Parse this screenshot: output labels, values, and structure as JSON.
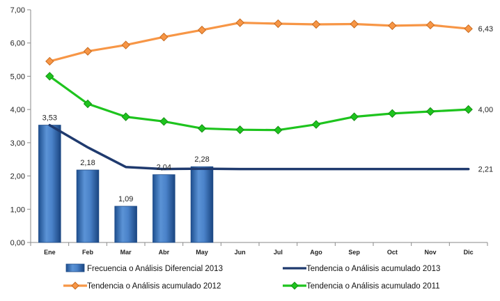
{
  "chart_data": {
    "type": "bar",
    "title": "",
    "xlabel": "",
    "ylabel": "",
    "ylim": [
      0,
      7
    ],
    "y_ticks": [
      "0,00",
      "1,00",
      "2,00",
      "3,00",
      "4,00",
      "5,00",
      "6,00",
      "7,00"
    ],
    "categories": [
      "Ene",
      "Feb",
      "Mar",
      "Abr",
      "May",
      "Jun",
      "Jul",
      "Ago",
      "Sep",
      "Oct",
      "Nov",
      "Dic"
    ],
    "grid": false,
    "legend_position": "bottom",
    "series": [
      {
        "name": "Frecuencia o Análisis Diferencial 2013",
        "kind": "bar",
        "color": "#3c78c3",
        "values": [
          3.53,
          2.18,
          1.09,
          2.04,
          2.28,
          null,
          null,
          null,
          null,
          null,
          null,
          null
        ],
        "labels": [
          "3,53",
          "2,18",
          "1,09",
          "2,04",
          "2,28"
        ]
      },
      {
        "name": "Tendencia o Análisis acumulado 2013",
        "kind": "line",
        "color": "#1f3a6e",
        "values": [
          3.53,
          2.86,
          2.27,
          2.21,
          2.22,
          2.21,
          2.21,
          2.21,
          2.21,
          2.21,
          2.21,
          2.21
        ],
        "end_label": "2,21"
      },
      {
        "name": "Tendencia o Análisis acumulado 2012",
        "kind": "line",
        "color": "#f79646",
        "values": [
          5.45,
          5.75,
          5.94,
          6.18,
          6.39,
          6.61,
          6.58,
          6.56,
          6.57,
          6.52,
          6.54,
          6.43
        ],
        "end_label": "6,43"
      },
      {
        "name": "Tendencia o Análisis acumulado 2011",
        "kind": "line",
        "color": "#1ec41e",
        "values": [
          5.0,
          4.17,
          3.78,
          3.64,
          3.43,
          3.39,
          3.38,
          3.55,
          3.78,
          3.88,
          3.94,
          4.0
        ],
        "end_label": "4,00"
      }
    ]
  }
}
